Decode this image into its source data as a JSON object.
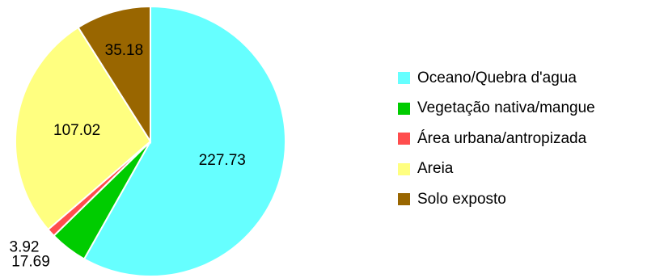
{
  "chart_data": {
    "type": "pie",
    "title": "",
    "slices": [
      {
        "label": "Oceano/Quebra d'agua",
        "value": 227.73,
        "display": "227.73",
        "color": "#66FFFF"
      },
      {
        "label": "Vegetação nativa/mangue",
        "value": 17.69,
        "display": "17.69",
        "color": "#00CC00"
      },
      {
        "label": "Área urbana/antropizada",
        "value": 3.92,
        "display": "3.92",
        "color": "#FF4D4D"
      },
      {
        "label": "Areia",
        "value": 107.02,
        "display": "107.02",
        "color": "#FFFF80"
      },
      {
        "label": "Solo exposto",
        "value": 35.18,
        "display": "35.18",
        "color": "#996600"
      }
    ],
    "start": "12 o'clock",
    "direction": "clockwise",
    "legend_position": "right"
  }
}
